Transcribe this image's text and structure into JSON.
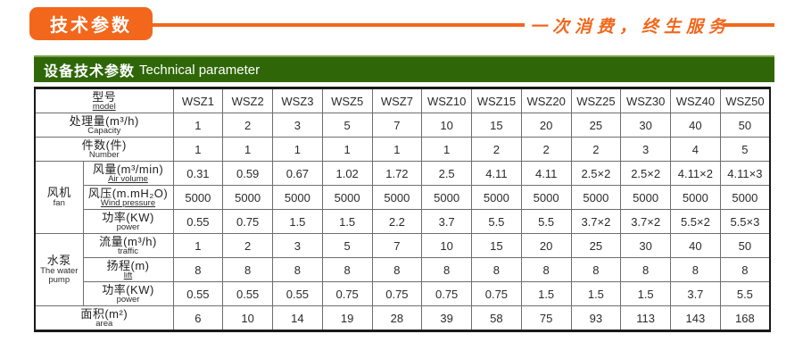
{
  "colors": {
    "orange": "#f2671c",
    "green": "#2f6708"
  },
  "header": {
    "ribbon_title": "技术参数",
    "slogan": "一次消费，终生服务"
  },
  "banner": {
    "title_cn": "设备技术参数",
    "title_en": "Technical parameter"
  },
  "table": {
    "rows": [
      {
        "type": "span",
        "cn": "型号",
        "en": "model",
        "en_underline": true,
        "values": [
          "WSZ1",
          "WSZ2",
          "WSZ3",
          "WSZ5",
          "WSZ7",
          "WSZ10",
          "WSZ15",
          "WSZ20",
          "WSZ25",
          "WSZ30",
          "WSZ40",
          "WSZ50"
        ]
      },
      {
        "type": "span",
        "cn": "处理量(m³/h)",
        "en": "Capacity",
        "values": [
          "1",
          "2",
          "3",
          "5",
          "7",
          "10",
          "15",
          "20",
          "25",
          "30",
          "40",
          "50"
        ]
      },
      {
        "type": "span",
        "cn": "件数(件)",
        "en": "Number",
        "values": [
          "1",
          "1",
          "1",
          "1",
          "1",
          "1",
          "2",
          "2",
          "2",
          "3",
          "4",
          "5"
        ]
      },
      {
        "type": "sub",
        "group": {
          "cn": "风机",
          "en": "fan",
          "span": 3
        },
        "cn": "风量(m³/min)",
        "en": "Air volume",
        "en_underline": true,
        "values": [
          "0.31",
          "0.59",
          "0.67",
          "1.02",
          "1.72",
          "2.5",
          "4.11",
          "4.11",
          "2.5×2",
          "2.5×2",
          "4.11×2",
          "4.11×3"
        ]
      },
      {
        "type": "sub",
        "cn": "风压(m.mH₂O)",
        "en": "Wind pressure",
        "en_underline": true,
        "values": [
          "5000",
          "5000",
          "5000",
          "5000",
          "5000",
          "5000",
          "5000",
          "5000",
          "5000",
          "5000",
          "5000",
          "5000"
        ]
      },
      {
        "type": "sub",
        "cn": "功率(KW)",
        "en": "power",
        "values": [
          "0.55",
          "0.75",
          "1.5",
          "1.5",
          "2.2",
          "3.7",
          "5.5",
          "5.5",
          "3.7×2",
          "3.7×2",
          "5.5×2",
          "5.5×3"
        ]
      },
      {
        "type": "sub",
        "group": {
          "cn": "水泵",
          "en": "The water pump",
          "span": 3
        },
        "cn": "流量(m³/h)",
        "en": "traffic",
        "values": [
          "1",
          "2",
          "3",
          "5",
          "7",
          "10",
          "15",
          "20",
          "25",
          "30",
          "40",
          "50"
        ]
      },
      {
        "type": "sub",
        "cn": "扬程(m)",
        "en": "lift",
        "en_underline": true,
        "values": [
          "8",
          "8",
          "8",
          "8",
          "8",
          "8",
          "8",
          "8",
          "8",
          "8",
          "8",
          "8"
        ]
      },
      {
        "type": "sub",
        "cn": "功率(KW)",
        "en": "power",
        "values": [
          "0.55",
          "0.55",
          "0.55",
          "0.75",
          "0.75",
          "0.75",
          "0.75",
          "1.5",
          "1.5",
          "1.5",
          "3.7",
          "5.5"
        ]
      },
      {
        "type": "span",
        "cn": "面积(m²)",
        "en": "area",
        "align": "left",
        "values": [
          "6",
          "10",
          "14",
          "19",
          "28",
          "39",
          "58",
          "75",
          "93",
          "113",
          "143",
          "168"
        ]
      }
    ]
  }
}
